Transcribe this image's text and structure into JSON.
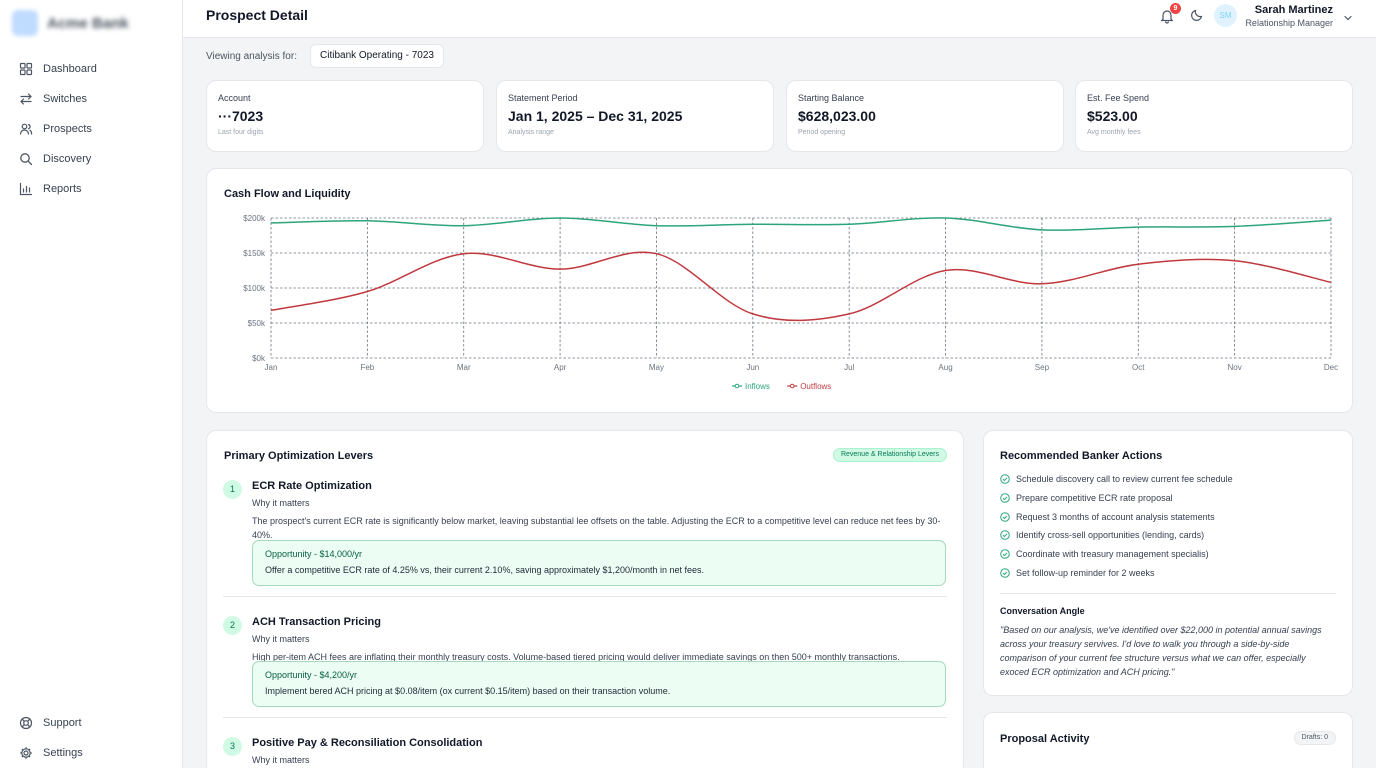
{
  "brand": {
    "name": "Acme Bank"
  },
  "sidebar": {
    "items": [
      {
        "label": "Dashboard",
        "icon": "grid-icon"
      },
      {
        "label": "Switches",
        "icon": "switch-arrows-icon"
      },
      {
        "label": "Prospects",
        "icon": "users-icon"
      },
      {
        "label": "Discovery",
        "icon": "search-icon"
      },
      {
        "label": "Reports",
        "icon": "bar-chart-icon"
      }
    ],
    "bottom": [
      {
        "label": "Support",
        "icon": "lifebuoy-icon"
      },
      {
        "label": "Settings",
        "icon": "gear-icon"
      }
    ]
  },
  "header": {
    "title": "Prospect Detail",
    "notifications": "9",
    "avatar_initials": "SM",
    "user_name": "Sarah Martinez",
    "user_role": "Relationship Manager"
  },
  "viewing": {
    "label": "Viewing analysis for:",
    "account": "Citibank Operating - 7023"
  },
  "stats": [
    {
      "label": "Account",
      "value": "···7023",
      "sub": "Last four digits"
    },
    {
      "label": "Statement Period",
      "value": "Jan 1, 2025 – Dec 31, 2025",
      "sub": "Analysis range"
    },
    {
      "label": "Starting Balance",
      "value": "$628,023.00",
      "sub": "Period opening"
    },
    {
      "label": "Est. Fee Spend",
      "value": "$523.00",
      "sub": "Avg monthly fees"
    }
  ],
  "chart_title": "Cash Flow and Liquidity",
  "chart_data": {
    "type": "line",
    "x": [
      "Jan",
      "Feb",
      "Mar",
      "Apr",
      "May",
      "Jun",
      "Jul",
      "Aug",
      "Sep",
      "Oct",
      "Nov",
      "Dec"
    ],
    "yticks": [
      "$0k",
      "$50k",
      "$100k",
      "$150k",
      "$200k"
    ],
    "ylim": [
      0,
      200000
    ],
    "grid": true,
    "legend": "bottom-center",
    "series": [
      {
        "name": "Inflows",
        "color": "#2ca57a",
        "values": [
          193000,
          196000,
          189000,
          200000,
          189000,
          191000,
          191000,
          200000,
          183000,
          187000,
          188000,
          197000
        ]
      },
      {
        "name": "Outflows",
        "color": "#c0393f",
        "values": [
          68000,
          95000,
          149000,
          127000,
          149000,
          63000,
          63000,
          125000,
          106000,
          134000,
          139000,
          108000
        ]
      }
    ]
  },
  "levers": {
    "title": "Primary Optimization Levers",
    "badge": "Revenue & Relationship Levers",
    "items": [
      {
        "num": "1",
        "title": "ECR Rate Optimization",
        "why": "Why it matters",
        "desc": "The prospect's current ECR rate is significantly below market, leaving substantial lee offsets on the table. Adjusting the ECR to a competitive level can reduce net fees by 30-40%.",
        "opp_title": "Opportunity - $14,000/yr",
        "opp_text": "Offer a competitive ECR rate of 4.25% vs, their current 2.10%, saving approximately $1,200/month in net fees."
      },
      {
        "num": "2",
        "title": "ACH Transaction Pricing",
        "why": "Why it matters",
        "desc": "High per-item ACH fees are inflating their monthly treasury costs. Volume-based tiered pricing would deliver immediate savings on then 500+ monthly transactions.",
        "opp_title": "Opportunity - $4,200/yr",
        "opp_text": "Implement bered ACH pricing at $0.08/item (ox current $0.15/item) based on their transaction volume."
      },
      {
        "num": "3",
        "title": "Positive Pay & Reconsiliation Consolidation",
        "why": "Why it matters"
      }
    ]
  },
  "actions": {
    "title": "Recommended Banker Actions",
    "items": [
      "Schedule discovery call to review current fee schedule",
      "Prepare competitive ECR rate proposal",
      "Request 3 months of account analysis statements",
      "Identify cross-sell opportunities (lending, cards)",
      "Coordinate with treasury management specialis)",
      "Set follow-up reminder for 2 weeks"
    ],
    "angle_title": "Conversation Angle",
    "angle_text": "\"Based on our analysis, we've identified over $22,000 in potential annual savings across your treasury servives. I'd love to walk you through a side-by-side comparison of your current fee structure versus what we can offer, especially exoced ECR optimization and ACH pricing.\""
  },
  "proposal": {
    "title": "Proposal Activity",
    "drafts": "Drafts: 0"
  }
}
